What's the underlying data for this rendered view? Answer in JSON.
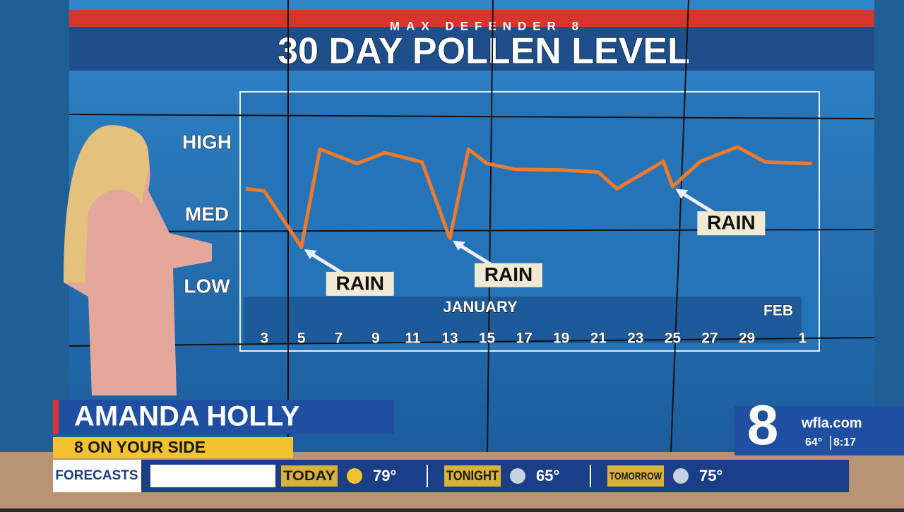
{
  "chart_data": {
    "type": "line",
    "supertitle": "MAX DEFENDER 8",
    "title": "30 DAY POLLEN LEVEL",
    "x": [
      2,
      3,
      5,
      6,
      8,
      9.5,
      11.5,
      13,
      14,
      15,
      16.5,
      19,
      21,
      22,
      24.5,
      25,
      26.5,
      28.5,
      30,
      32.5
    ],
    "series": [
      {
        "color": "#f07a2a",
        "values": [
          2.37,
          2.34,
          1.56,
          2.92,
          2.72,
          2.87,
          2.74,
          1.68,
          2.92,
          2.72,
          2.64,
          2.63,
          2.6,
          2.37,
          2.75,
          2.4,
          2.75,
          2.95,
          2.74,
          2.72
        ]
      }
    ],
    "xlim": [
      1.7,
      32.9
    ],
    "xticks": [
      3,
      5,
      7,
      9,
      11,
      13,
      15,
      17,
      19,
      21,
      23,
      25,
      27,
      29,
      {
        "value": 32,
        "label": "1"
      }
    ],
    "ylim": [
      0.2,
      3.7
    ],
    "yticks": [
      {
        "value": 1,
        "label": "LOW"
      },
      {
        "value": 2,
        "label": "MED"
      },
      {
        "value": 3,
        "label": "HIGH"
      }
    ],
    "month_labels": [
      "JANUARY",
      "FEB"
    ],
    "annotations": [
      {
        "text": "RAIN",
        "x": 5,
        "y": 1.56
      },
      {
        "text": "RAIN",
        "x": 13,
        "y": 1.68
      },
      {
        "text": "RAIN",
        "x": 25,
        "y": 2.4
      }
    ]
  },
  "broadcast": {
    "name": "AMANDA HOLLY",
    "tagline": "8 ON YOUR SIDE",
    "ticker_label": "FORECASTS",
    "forecast": [
      {
        "label": "TODAY",
        "temp": "79°"
      },
      {
        "label": "TONIGHT",
        "temp": "65°"
      },
      {
        "label": "TOMORROW",
        "temp": "75°"
      }
    ],
    "logo": "8",
    "site": "wfla.com",
    "current_temp": "64°",
    "time": "8:17"
  }
}
